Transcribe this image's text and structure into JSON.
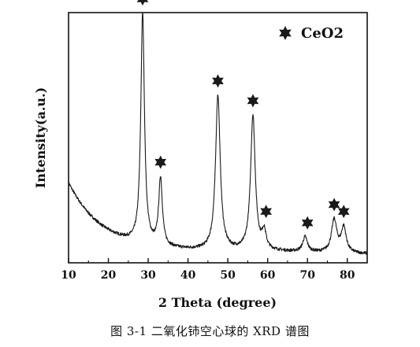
{
  "figure": {
    "caption": "图 3-1  二氧化铈空心球的 XRD 谱图"
  },
  "chart_data": {
    "type": "line",
    "title": "",
    "xlabel": "2 Theta (degree)",
    "ylabel": "Intensity(a.u.)",
    "xlim": [
      10,
      85
    ],
    "x_ticks": [
      10,
      20,
      30,
      40,
      50,
      60,
      70,
      80
    ],
    "ylim": [
      0,
      1.0
    ],
    "y_ticks_shown": false,
    "grid": false,
    "legend": {
      "position": "top-right",
      "entries": [
        {
          "label": "CeO2",
          "marker": "star"
        }
      ]
    },
    "series": [
      {
        "name": "",
        "color": "#1a1a1a",
        "background": {
          "start_value": 0.32,
          "decay": 8.5,
          "floor": 0.045,
          "end_value": 0.035
        },
        "peaks": [
          {
            "x": 28.6,
            "height": 0.92,
            "width": 0.55
          },
          {
            "x": 33.1,
            "height": 0.27,
            "width": 0.55
          },
          {
            "x": 47.5,
            "height": 0.62,
            "width": 0.7
          },
          {
            "x": 56.3,
            "height": 0.54,
            "width": 0.7
          },
          {
            "x": 59.1,
            "height": 0.07,
            "width": 0.6
          },
          {
            "x": 69.4,
            "height": 0.06,
            "width": 0.7
          },
          {
            "x": 76.7,
            "height": 0.13,
            "width": 0.8
          },
          {
            "x": 79.1,
            "height": 0.1,
            "width": 0.75
          }
        ]
      }
    ],
    "annotations": [
      {
        "marker": "star",
        "x": 28.6
      },
      {
        "marker": "star",
        "x": 33.1
      },
      {
        "marker": "star",
        "x": 47.5
      },
      {
        "marker": "star",
        "x": 56.3
      },
      {
        "marker": "star",
        "x": 59.6
      },
      {
        "marker": "star",
        "x": 70.0
      },
      {
        "marker": "star",
        "x": 76.7
      },
      {
        "marker": "star",
        "x": 79.1
      }
    ]
  }
}
